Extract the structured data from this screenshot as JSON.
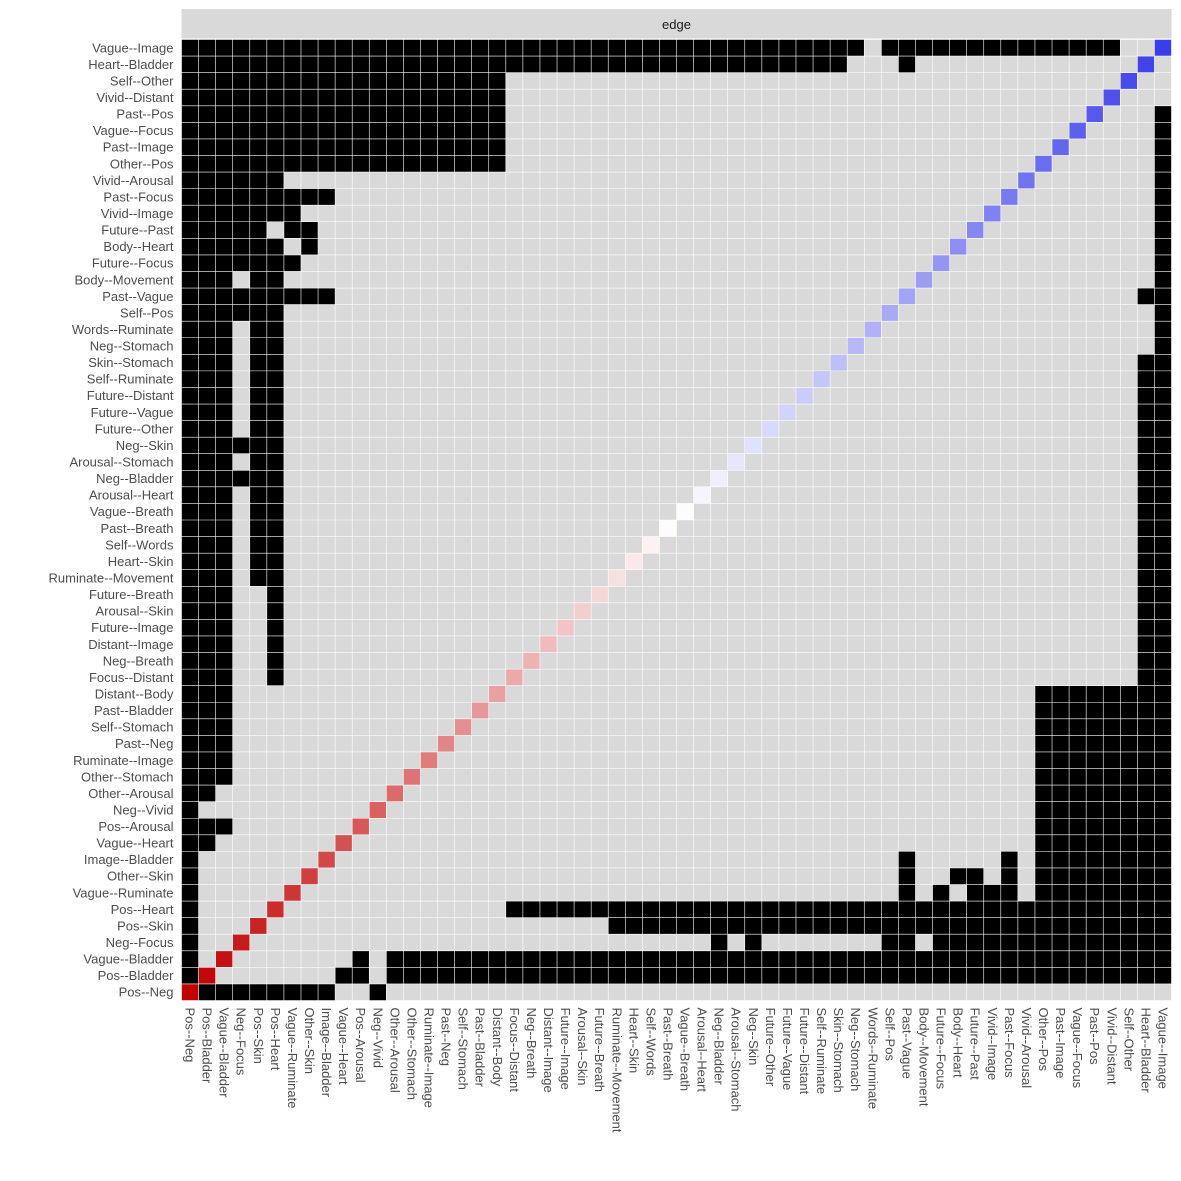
{
  "chart_data": {
    "type": "heatmap",
    "title": "",
    "facet_label": "edge",
    "xlabel": "",
    "ylabel": "",
    "categories_x": [
      "Pos--Neg",
      "Pos--Bladder",
      "Vague--Bladder",
      "Neg--Focus",
      "Pos--Skin",
      "Pos--Heart",
      "Vague--Ruminate",
      "Other--Skin",
      "Image--Bladder",
      "Vague--Heart",
      "Pos--Arousal",
      "Neg--Vivid",
      "Other--Arousal",
      "Other--Stomach",
      "Ruminate--Image",
      "Past--Neg",
      "Self--Stomach",
      "Past--Bladder",
      "Distant--Body",
      "Focus--Distant",
      "Neg--Breath",
      "Distant--Image",
      "Future--Image",
      "Arousal--Skin",
      "Future--Breath",
      "Ruminate--Movement",
      "Heart--Skin",
      "Self--Words",
      "Past--Breath",
      "Vague--Breath",
      "Arousal--Heart",
      "Neg--Bladder",
      "Arousal--Stomach",
      "Neg--Skin",
      "Future--Other",
      "Future--Vague",
      "Future--Distant",
      "Self--Ruminate",
      "Skin--Stomach",
      "Neg--Stomach",
      "Words--Ruminate",
      "Self--Pos",
      "Past--Vague",
      "Body--Movement",
      "Future--Focus",
      "Body--Heart",
      "Future--Past",
      "Vivid--Image",
      "Past--Focus",
      "Vivid--Arousal",
      "Other--Pos",
      "Past--Image",
      "Vague--Focus",
      "Past--Pos",
      "Vivid--Distant",
      "Self--Other",
      "Heart--Bladder",
      "Vague--Image"
    ],
    "categories_y": [
      "Vague--Image",
      "Heart--Bladder",
      "Self--Other",
      "Vivid--Distant",
      "Past--Pos",
      "Vague--Focus",
      "Past--Image",
      "Other--Pos",
      "Vivid--Arousal",
      "Past--Focus",
      "Vivid--Image",
      "Future--Past",
      "Body--Heart",
      "Future--Focus",
      "Body--Movement",
      "Past--Vague",
      "Self--Pos",
      "Words--Ruminate",
      "Neg--Stomach",
      "Skin--Stomach",
      "Self--Ruminate",
      "Future--Distant",
      "Future--Vague",
      "Future--Other",
      "Neg--Skin",
      "Arousal--Stomach",
      "Neg--Bladder",
      "Arousal--Heart",
      "Vague--Breath",
      "Past--Breath",
      "Self--Words",
      "Heart--Skin",
      "Ruminate--Movement",
      "Future--Breath",
      "Arousal--Skin",
      "Future--Image",
      "Distant--Image",
      "Neg--Breath",
      "Focus--Distant",
      "Distant--Body",
      "Past--Bladder",
      "Self--Stomach",
      "Past--Neg",
      "Ruminate--Image",
      "Other--Stomach",
      "Other--Arousal",
      "Neg--Vivid",
      "Pos--Arousal",
      "Vague--Heart",
      "Image--Bladder",
      "Other--Skin",
      "Vague--Ruminate",
      "Pos--Heart",
      "Pos--Skin",
      "Neg--Focus",
      "Vague--Bladder",
      "Pos--Bladder",
      "Pos--Neg"
    ],
    "cell_values": {
      "black": 1,
      "grey": 0,
      "diagonal": "diverging red-white-blue gradient from Pos--Neg (red) to Vague--Image (blue)"
    },
    "grid": true,
    "legend": "none",
    "colors": {
      "panel": "#d9d9d9",
      "cell_on": "#000000",
      "grid": "#ffffff",
      "strip": "#d9d9d9",
      "tick_text": "#4d4d4d",
      "diag_low": "#c00000",
      "diag_mid": "#ffffff",
      "diag_high": "#3a3ee8"
    },
    "rows": [
      {
        "b": [
          [
            0,
            39
          ],
          [
            41,
            54
          ]
        ]
      },
      {
        "b": [
          [
            0,
            38
          ]
        ],
        "b2": [
          [
            42,
            42
          ]
        ]
      },
      {
        "b": [
          [
            0,
            18
          ]
        ]
      },
      {
        "b": [
          [
            0,
            18
          ]
        ]
      },
      {
        "b": [
          [
            0,
            18
          ]
        ],
        "b2": [
          [
            57,
            57
          ]
        ]
      },
      {
        "b": [
          [
            0,
            18
          ]
        ],
        "b2": [
          [
            57,
            57
          ]
        ]
      },
      {
        "b": [
          [
            0,
            18
          ]
        ],
        "b2": [
          [
            57,
            57
          ]
        ]
      },
      {
        "b": [
          [
            0,
            18
          ]
        ],
        "b2": [
          [
            57,
            57
          ]
        ]
      },
      {
        "b": [
          [
            0,
            5
          ]
        ],
        "b2": [
          [
            57,
            57
          ]
        ]
      },
      {
        "b": [
          [
            0,
            8
          ]
        ],
        "b2": [
          [
            57,
            57
          ]
        ]
      },
      {
        "b": [
          [
            0,
            6
          ]
        ],
        "b2": [
          [
            57,
            57
          ]
        ]
      },
      {
        "b": [
          [
            0,
            4
          ],
          [
            6,
            7
          ]
        ],
        "b2": [
          [
            57,
            57
          ]
        ]
      },
      {
        "b": [
          [
            0,
            5
          ],
          [
            7,
            7
          ]
        ],
        "b2": [
          [
            57,
            57
          ]
        ]
      },
      {
        "b": [
          [
            0,
            6
          ]
        ],
        "b2": [
          [
            57,
            57
          ]
        ]
      },
      {
        "b": [
          [
            0,
            2
          ],
          [
            4,
            5
          ]
        ],
        "b2": [
          [
            57,
            57
          ]
        ]
      },
      {
        "b": [
          [
            0,
            8
          ]
        ],
        "b2": [
          [
            56,
            57
          ]
        ]
      },
      {
        "b": [
          [
            0,
            5
          ]
        ],
        "b2": [
          [
            57,
            57
          ]
        ]
      },
      {
        "b": [
          [
            0,
            2
          ],
          [
            4,
            5
          ]
        ],
        "b2": [
          [
            57,
            57
          ]
        ]
      },
      {
        "b": [
          [
            0,
            2
          ],
          [
            4,
            5
          ]
        ],
        "b2": [
          [
            57,
            57
          ]
        ]
      },
      {
        "b": [
          [
            0,
            2
          ],
          [
            4,
            5
          ]
        ],
        "b2": [
          [
            56,
            57
          ]
        ]
      },
      {
        "b": [
          [
            0,
            2
          ],
          [
            4,
            5
          ]
        ],
        "b2": [
          [
            56,
            57
          ]
        ]
      },
      {
        "b": [
          [
            0,
            2
          ],
          [
            4,
            5
          ]
        ],
        "b2": [
          [
            56,
            57
          ]
        ]
      },
      {
        "b": [
          [
            0,
            2
          ],
          [
            4,
            5
          ]
        ],
        "b2": [
          [
            56,
            57
          ]
        ]
      },
      {
        "b": [
          [
            0,
            2
          ],
          [
            4,
            5
          ]
        ],
        "b2": [
          [
            56,
            57
          ]
        ]
      },
      {
        "b": [
          [
            0,
            5
          ]
        ],
        "b2": [
          [
            56,
            57
          ]
        ]
      },
      {
        "b": [
          [
            0,
            2
          ],
          [
            4,
            5
          ]
        ],
        "b2": [
          [
            56,
            57
          ]
        ]
      },
      {
        "b": [
          [
            0,
            5
          ]
        ],
        "b2": [
          [
            56,
            57
          ]
        ]
      },
      {
        "b": [
          [
            0,
            2
          ],
          [
            4,
            5
          ]
        ],
        "b2": [
          [
            56,
            57
          ]
        ]
      },
      {
        "b": [
          [
            0,
            2
          ],
          [
            4,
            5
          ]
        ],
        "b2": [
          [
            56,
            57
          ]
        ]
      },
      {
        "b": [
          [
            0,
            2
          ],
          [
            4,
            5
          ]
        ],
        "b2": [
          [
            56,
            57
          ]
        ]
      },
      {
        "b": [
          [
            0,
            2
          ],
          [
            4,
            5
          ]
        ],
        "b2": [
          [
            56,
            57
          ]
        ]
      },
      {
        "b": [
          [
            0,
            2
          ],
          [
            4,
            5
          ]
        ],
        "b2": [
          [
            56,
            57
          ]
        ]
      },
      {
        "b": [
          [
            0,
            2
          ],
          [
            4,
            5
          ]
        ],
        "b2": [
          [
            56,
            57
          ]
        ]
      },
      {
        "b": [
          [
            0,
            2
          ],
          [
            5,
            5
          ]
        ],
        "b2": [
          [
            56,
            57
          ]
        ]
      },
      {
        "b": [
          [
            0,
            2
          ],
          [
            5,
            5
          ]
        ],
        "b2": [
          [
            56,
            57
          ]
        ]
      },
      {
        "b": [
          [
            0,
            2
          ],
          [
            5,
            5
          ]
        ],
        "b2": [
          [
            56,
            57
          ]
        ]
      },
      {
        "b": [
          [
            0,
            2
          ],
          [
            5,
            5
          ]
        ],
        "b2": [
          [
            56,
            57
          ]
        ]
      },
      {
        "b": [
          [
            0,
            2
          ],
          [
            5,
            5
          ]
        ],
        "b2": [
          [
            56,
            57
          ]
        ]
      },
      {
        "b": [
          [
            0,
            2
          ],
          [
            5,
            5
          ]
        ],
        "b2": [
          [
            56,
            57
          ]
        ]
      },
      {
        "b": [
          [
            0,
            2
          ]
        ],
        "b2": [
          [
            50,
            57
          ]
        ]
      },
      {
        "b": [
          [
            0,
            2
          ]
        ],
        "b2": [
          [
            50,
            57
          ]
        ]
      },
      {
        "b": [
          [
            0,
            2
          ]
        ],
        "b2": [
          [
            50,
            57
          ]
        ]
      },
      {
        "b": [
          [
            0,
            2
          ]
        ],
        "b2": [
          [
            50,
            57
          ]
        ]
      },
      {
        "b": [
          [
            0,
            2
          ]
        ],
        "b2": [
          [
            50,
            57
          ]
        ]
      },
      {
        "b": [
          [
            0,
            2
          ]
        ],
        "b2": [
          [
            50,
            57
          ]
        ]
      },
      {
        "b": [
          [
            0,
            1
          ]
        ],
        "b2": [
          [
            50,
            57
          ]
        ]
      },
      {
        "b": [
          [
            0,
            0
          ]
        ],
        "b2": [
          [
            50,
            57
          ]
        ]
      },
      {
        "b": [
          [
            0,
            2
          ]
        ],
        "b2": [
          [
            50,
            57
          ]
        ]
      },
      {
        "b": [
          [
            0,
            1
          ]
        ],
        "b2": [
          [
            50,
            57
          ]
        ]
      },
      {
        "b": [
          [
            0,
            0
          ]
        ],
        "b2": [
          [
            42,
            42
          ],
          [
            48,
            48
          ],
          [
            50,
            57
          ]
        ]
      },
      {
        "b": [
          [
            0,
            0
          ]
        ],
        "b2": [
          [
            42,
            42
          ],
          [
            45,
            46
          ],
          [
            48,
            48
          ],
          [
            50,
            57
          ]
        ]
      },
      {
        "b": [
          [
            0,
            0
          ]
        ],
        "b2": [
          [
            42,
            42
          ],
          [
            44,
            44
          ],
          [
            46,
            48
          ],
          [
            50,
            57
          ]
        ]
      },
      {
        "b": [
          [
            0,
            0
          ],
          [
            19,
            57
          ]
        ]
      },
      {
        "b": [
          [
            0,
            0
          ],
          [
            25,
            57
          ]
        ]
      },
      {
        "b": [
          [
            0,
            0
          ],
          [
            31,
            31
          ],
          [
            33,
            33
          ],
          [
            41,
            42
          ],
          [
            44,
            57
          ]
        ]
      },
      {
        "b": [
          [
            0,
            0
          ],
          [
            10,
            10
          ],
          [
            12,
            57
          ]
        ]
      },
      {
        "b": [
          [
            0,
            0
          ],
          [
            9,
            10
          ],
          [
            12,
            57
          ]
        ]
      },
      {
        "b": [
          [
            1,
            8
          ],
          [
            11,
            11
          ]
        ]
      }
    ]
  }
}
